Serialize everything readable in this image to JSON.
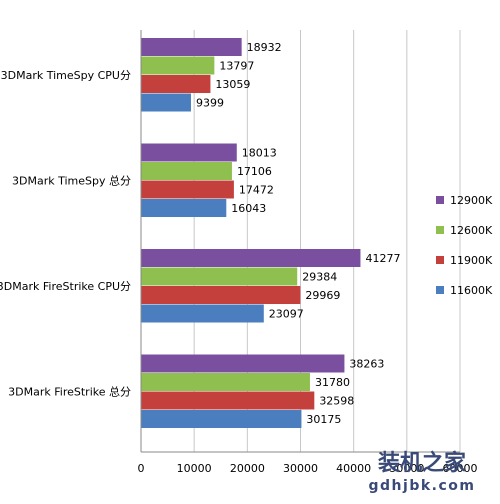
{
  "chart_data": {
    "type": "bar",
    "orientation": "horizontal",
    "categories": [
      "3DMark TimeSpy CPU分",
      "3DMark TimeSpy 总分",
      "3DMark FireStrike CPU分",
      "3DMark FireStrike 总分"
    ],
    "series": [
      {
        "name": "12900K",
        "color": "#7b4fa0",
        "values": [
          18932,
          18013,
          41277,
          38263
        ]
      },
      {
        "name": "12600K",
        "color": "#8fbf4f",
        "values": [
          13797,
          17106,
          29384,
          31780
        ]
      },
      {
        "name": "11900K",
        "color": "#c4403d",
        "values": [
          13059,
          17472,
          29969,
          32598
        ]
      },
      {
        "name": "11600K",
        "color": "#4a7ebf",
        "values": [
          9399,
          16043,
          23097,
          30175
        ]
      }
    ],
    "xlim": [
      0,
      60000
    ],
    "xticks": [
      "0",
      "10000",
      "20000",
      "30000",
      "40000",
      "50000",
      "60000"
    ],
    "grid": true,
    "legend_position": "right"
  },
  "watermark": {
    "name": "装机之家",
    "url": "gdhjbk.com"
  }
}
